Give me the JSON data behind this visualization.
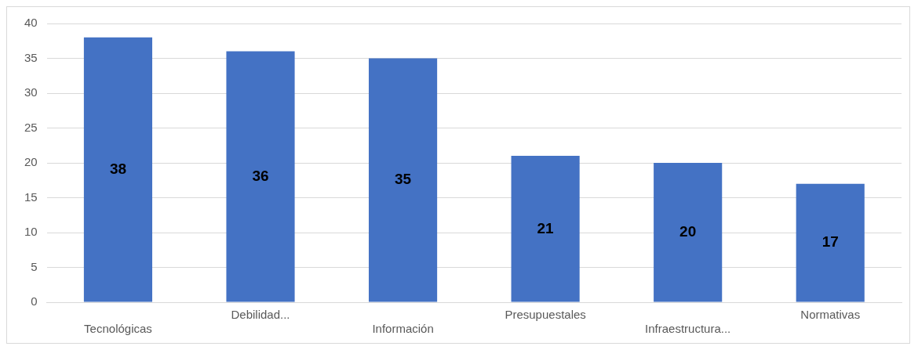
{
  "chart_data": {
    "type": "bar",
    "categories": [
      "Tecnológicas",
      "Debilidad...",
      "Información",
      "Presupuestales",
      "Infraestructura...",
      "Normativas"
    ],
    "values": [
      38,
      36,
      35,
      21,
      20,
      17
    ],
    "color": "#4472c4",
    "ylim": [
      0,
      40
    ],
    "yticks": [
      0,
      5,
      10,
      15,
      20,
      25,
      30,
      35,
      40
    ],
    "grid": "y",
    "data_labels": true,
    "legend": false
  }
}
